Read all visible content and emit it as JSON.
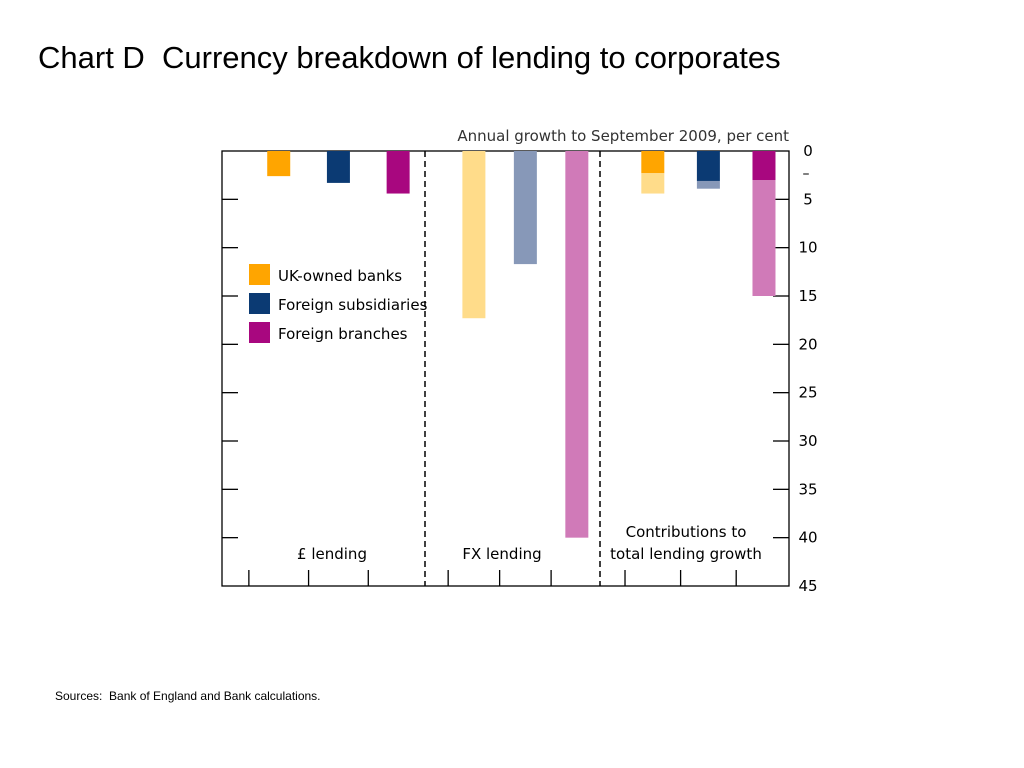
{
  "page": {
    "title": "Chart D  Currency breakdown of lending to corporates",
    "sources": "Sources:  Bank of England and Bank calculations."
  },
  "chart_data": {
    "type": "bar",
    "title": "Chart D  Currency breakdown of lending to corporates",
    "ylabel": "Annual growth to September 2009, per cent",
    "y_axis_minus_label": "–",
    "ylim": [
      0,
      45
    ],
    "y_inverted": true,
    "yticks": [
      0,
      5,
      10,
      15,
      20,
      25,
      30,
      35,
      40,
      45
    ],
    "groups": [
      {
        "name": "£ lending"
      },
      {
        "name": "FX lending"
      },
      {
        "name": "Contributions to total lending growth",
        "lines": [
          "Contributions to",
          "total lending growth"
        ]
      }
    ],
    "legend": {
      "placement": "left",
      "entries": [
        {
          "name": "UK-owned banks",
          "color": "#FFA500"
        },
        {
          "name": "Foreign subsidiaries",
          "color": "#0B3A73"
        },
        {
          "name": "Foreign branches",
          "color": "#A8077F"
        }
      ]
    },
    "bars": [
      {
        "group": 0,
        "series": "UK-owned banks",
        "value": -2.6,
        "color": "#FFA500"
      },
      {
        "group": 0,
        "series": "Foreign subsidiaries",
        "value": -3.3,
        "color": "#0B3A73"
      },
      {
        "group": 0,
        "series": "Foreign branches",
        "value": -4.4,
        "color": "#A8077F"
      },
      {
        "group": 1,
        "series": "UK-owned banks",
        "value": -17.3,
        "color": "#FFDC8A"
      },
      {
        "group": 1,
        "series": "Foreign subsidiaries",
        "value": -11.7,
        "color": "#8798B8"
      },
      {
        "group": 1,
        "series": "Foreign branches",
        "value": -40.0,
        "color": "#D07AB8"
      }
    ],
    "stacked_bars": [
      {
        "group": 2,
        "series": "UK-owned banks",
        "segments": [
          {
            "part": "£ lending",
            "value": -2.3,
            "color": "#FFA500"
          },
          {
            "part": "FX lending",
            "value": -2.1,
            "color": "#FFDC8A"
          }
        ]
      },
      {
        "group": 2,
        "series": "Foreign subsidiaries",
        "segments": [
          {
            "part": "£ lending",
            "value": -3.1,
            "color": "#0B3A73"
          },
          {
            "part": "FX lending",
            "value": -0.8,
            "color": "#8798B8"
          }
        ]
      },
      {
        "group": 2,
        "series": "Foreign branches",
        "segments": [
          {
            "part": "£ lending",
            "value": -3.0,
            "color": "#A8077F"
          },
          {
            "part": "FX lending",
            "value": -12.0,
            "color": "#D07AB8"
          }
        ]
      }
    ]
  }
}
